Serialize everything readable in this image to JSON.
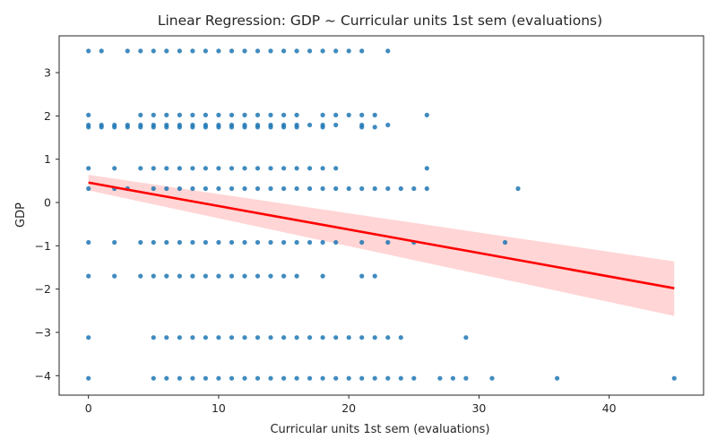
{
  "chart_data": {
    "type": "scatter",
    "title": "Linear Regression: GDP ~ Curricular units 1st sem (evaluations)",
    "xlabel": "Curricular units 1st sem (evaluations)",
    "ylabel": "GDP",
    "xlim": [
      -2.25,
      47.25
    ],
    "ylim": [
      -4.45,
      3.85
    ],
    "xticks": [
      0,
      10,
      20,
      30,
      40
    ],
    "yticks": [
      -4,
      -3,
      -2,
      -1,
      0,
      1,
      2,
      3
    ],
    "grid": false,
    "colors": {
      "points": "#1f77b4",
      "line": "#ff0000",
      "band": "#ffb3b3"
    },
    "series": [
      {
        "type": "scatter",
        "points": []
      },
      {
        "type": "regression_line",
        "x": [
          0,
          45
        ],
        "y": [
          0.46,
          -1.98
        ]
      },
      {
        "type": "confidence_band",
        "x": [
          0,
          45
        ],
        "y_lower": [
          0.28,
          -2.62
        ],
        "y_upper": [
          0.64,
          -1.36
        ]
      }
    ],
    "scatter_rows": [
      {
        "y": 3.5,
        "x": [
          0,
          1,
          3,
          4,
          5,
          6,
          7,
          8,
          9,
          10,
          11,
          12,
          13,
          14,
          15,
          16,
          17,
          18,
          19,
          20,
          21,
          23
        ]
      },
      {
        "y": 2.02,
        "x": [
          0,
          4,
          5,
          6,
          7,
          8,
          9,
          10,
          11,
          12,
          13,
          14,
          15,
          16,
          18,
          19,
          20,
          21,
          22,
          26
        ]
      },
      {
        "y": 1.79,
        "x": [
          0,
          1,
          2,
          3,
          4,
          5,
          6,
          7,
          8,
          9,
          10,
          11,
          12,
          13,
          14,
          15,
          16,
          17,
          18,
          19,
          21,
          23
        ]
      },
      {
        "y": 1.74,
        "x": [
          0,
          1,
          2,
          3,
          4,
          5,
          6,
          7,
          8,
          9,
          10,
          11,
          12,
          13,
          14,
          15,
          16,
          18,
          21,
          22
        ]
      },
      {
        "y": 0.79,
        "x": [
          0,
          2,
          4,
          5,
          6,
          7,
          8,
          9,
          10,
          11,
          12,
          13,
          14,
          15,
          16,
          17,
          18,
          19,
          26
        ]
      },
      {
        "y": 0.32,
        "x": [
          0,
          2,
          3,
          5,
          6,
          7,
          8,
          9,
          10,
          11,
          12,
          13,
          14,
          15,
          16,
          17,
          18,
          19,
          20,
          21,
          22,
          23,
          24,
          25,
          26,
          33
        ]
      },
      {
        "y": -0.92,
        "x": [
          0,
          2,
          4,
          5,
          6,
          7,
          8,
          9,
          10,
          11,
          12,
          13,
          14,
          15,
          16,
          17,
          18,
          19,
          21,
          23,
          25,
          32
        ]
      },
      {
        "y": -1.7,
        "x": [
          0,
          2,
          4,
          5,
          6,
          7,
          8,
          9,
          10,
          11,
          12,
          13,
          14,
          15,
          16,
          18,
          21,
          22
        ]
      },
      {
        "y": -3.12,
        "x": [
          0,
          5,
          6,
          7,
          8,
          9,
          10,
          11,
          12,
          13,
          14,
          15,
          16,
          17,
          18,
          19,
          20,
          21,
          22,
          23,
          24,
          29
        ]
      },
      {
        "y": -4.06,
        "x": [
          0,
          5,
          6,
          7,
          8,
          9,
          10,
          11,
          12,
          13,
          14,
          15,
          16,
          17,
          18,
          19,
          20,
          21,
          22,
          23,
          24,
          25,
          27,
          28,
          29,
          31,
          36,
          45
        ]
      }
    ]
  }
}
